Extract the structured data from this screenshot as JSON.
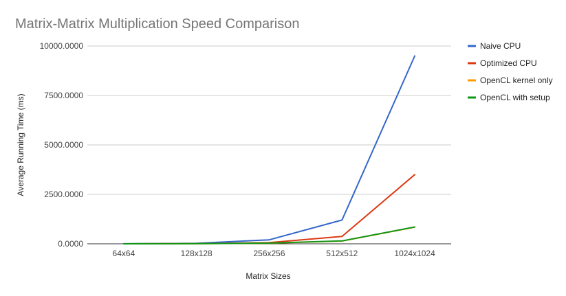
{
  "chart_data": {
    "type": "line",
    "title": "Matrix-Matrix Multiplication Speed Comparison",
    "xlabel": "Matrix Sizes",
    "ylabel": "Average Running Time (ms)",
    "categories": [
      "64x64",
      "128x128",
      "256x256",
      "512x512",
      "1024x1024"
    ],
    "ylim": [
      0,
      10000
    ],
    "yticks": [
      0,
      2500,
      5000,
      7500,
      10000
    ],
    "ytick_labels": [
      "0.0000",
      "2500.0000",
      "5000.0000",
      "7500.0000",
      "10000.0000"
    ],
    "grid": true,
    "legend_position": "right",
    "series": [
      {
        "name": "Naive CPU",
        "color": "#3366cc",
        "values": [
          3,
          25,
          200,
          1200,
          9500
        ]
      },
      {
        "name": "Optimized CPU",
        "color": "#dc3912",
        "values": [
          1,
          10,
          60,
          370,
          3500
        ]
      },
      {
        "name": "OpenCL kernel only",
        "color": "#ff9900",
        "values": [
          1,
          5,
          30,
          140,
          840
        ]
      },
      {
        "name": "OpenCL with setup",
        "color": "#109618",
        "values": [
          1,
          6,
          35,
          145,
          850
        ]
      }
    ]
  }
}
